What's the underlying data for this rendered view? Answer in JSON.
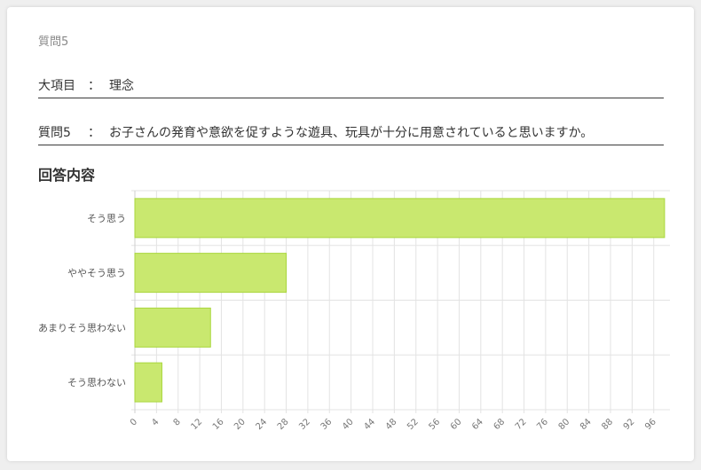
{
  "question_number": "質問5",
  "category": {
    "label": "大項目",
    "separator": "：",
    "value": "理念"
  },
  "question": {
    "label": "質問5",
    "separator": "：",
    "value": "お子さんの発育や意欲を促すような遊具、玩具が十分に用意されていると思いますか。"
  },
  "section_title": "回答内容",
  "colors": {
    "bar_fill": "#c9e86f",
    "bar_stroke": "#a9d63c",
    "grid": "#e3e3e3"
  },
  "chart_data": {
    "type": "bar",
    "orientation": "horizontal",
    "categories": [
      "そう思う",
      "ややそう思う",
      "あまりそう思わない",
      "そう思わない"
    ],
    "values": [
      98,
      28,
      14,
      5
    ],
    "xlim": [
      0,
      99
    ],
    "x_ticks": [
      0,
      4,
      8,
      12,
      16,
      20,
      24,
      28,
      32,
      36,
      40,
      44,
      48,
      52,
      56,
      60,
      64,
      68,
      72,
      76,
      80,
      84,
      88,
      92,
      96
    ],
    "grid": true,
    "legend": false
  }
}
